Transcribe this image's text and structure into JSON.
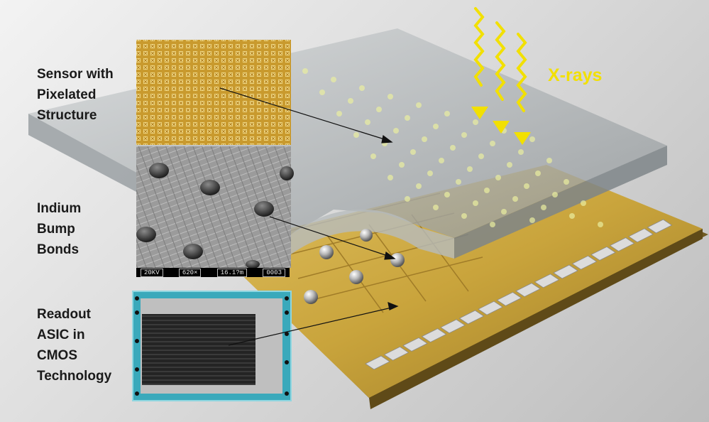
{
  "labels": {
    "sensor": [
      "Sensor with",
      "Pixelated",
      "Structure"
    ],
    "bumps": [
      "Indium",
      "Bump",
      "Bonds"
    ],
    "asic": [
      "Readout",
      "ASIC in",
      "CMOS",
      "Technology"
    ],
    "xrays": "X-rays"
  },
  "sem_scale": {
    "voltage": "20KV",
    "magnification": "620×",
    "length": "16.1?m",
    "image_no": "0003"
  },
  "colors": {
    "xray": "#f2e000",
    "gold": "#c9a43c",
    "sensor_glass": "#b8bdbf",
    "asic_pad_teal": "#2aa6b8"
  }
}
